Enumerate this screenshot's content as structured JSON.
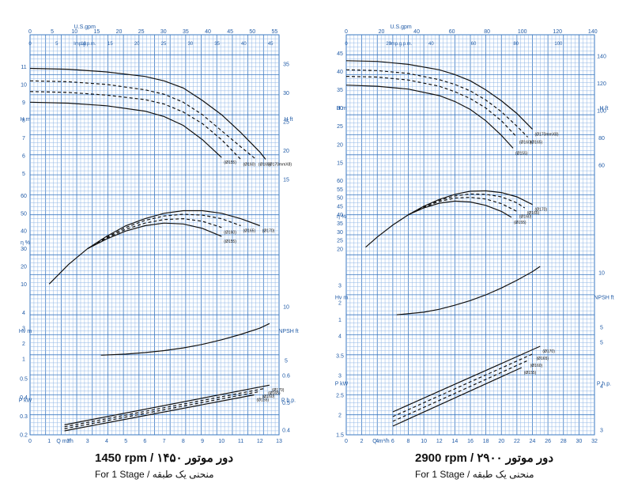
{
  "colors": {
    "grid": "#3a78c2",
    "grid_minor": "#8fb6e6",
    "axis_text": "#1f5aa6",
    "curve": "#111111"
  },
  "captions": {
    "left_rpm": "1450 rpm / ۱۴۵۰ دور موتور",
    "left_stage": "For 1 Stage / منحنی یک طبقه",
    "right_rpm": "2900 rpm / ۲۹۰۰ دور موتور",
    "right_stage": "For 1 Stage / منحنی یک طبقه"
  },
  "chart_data": [
    {
      "type": "line",
      "speed": "1450 rpm",
      "top_axis_1": {
        "label": "U.S.gpm",
        "range": [
          0,
          56
        ],
        "ticks": [
          0,
          5,
          10,
          15,
          20,
          25,
          30,
          35,
          40,
          45,
          50,
          55
        ]
      },
      "top_axis_2": {
        "label": "Imp.g.p.m.",
        "range": [
          0,
          46.6
        ],
        "ticks": [
          0,
          5,
          10,
          15,
          20,
          25,
          30,
          35,
          40,
          45
        ]
      },
      "x_axis": {
        "label": "Q m³/h",
        "range": [
          0,
          13
        ],
        "ticks": [
          0,
          1,
          2,
          3,
          4,
          5,
          6,
          7,
          8,
          9,
          10,
          11,
          12,
          13
        ]
      },
      "panels": [
        {
          "id": "head",
          "ylabel": "H m",
          "ylim": [
            4.4,
            11.5
          ],
          "yticks": [
            5,
            6,
            7,
            8,
            9,
            10,
            11
          ],
          "right": {
            "label": "H ft",
            "ticks": [
              15,
              20,
              25,
              30,
              35
            ]
          },
          "series": [
            {
              "name": "(Ø170mmX8)",
              "dashed": false,
              "x": [
                0,
                2,
                4,
                6,
                7,
                8,
                9,
                10,
                11,
                12,
                12.3
              ],
              "y": [
                10.9,
                10.85,
                10.7,
                10.45,
                10.2,
                9.8,
                9.1,
                8.3,
                7.3,
                6.2,
                5.8
              ]
            },
            {
              "name": "(Ø165)",
              "dashed": true,
              "x": [
                0,
                2,
                4,
                6,
                7,
                8,
                9,
                10,
                11,
                11.8
              ],
              "y": [
                10.2,
                10.15,
                10.0,
                9.7,
                9.45,
                9.0,
                8.3,
                7.4,
                6.5,
                5.8
              ]
            },
            {
              "name": "(Ø160)",
              "dashed": true,
              "x": [
                0,
                2,
                4,
                6,
                7,
                8,
                9,
                10,
                11
              ],
              "y": [
                9.6,
                9.55,
                9.4,
                9.15,
                8.9,
                8.45,
                7.8,
                6.9,
                5.8
              ]
            },
            {
              "name": "(Ø155)",
              "dashed": false,
              "x": [
                0,
                2,
                4,
                6,
                7,
                8,
                9,
                10
              ],
              "y": [
                9.0,
                8.95,
                8.8,
                8.5,
                8.2,
                7.7,
                6.9,
                5.9
              ]
            }
          ]
        },
        {
          "id": "efficiency",
          "ylabel": "η %",
          "ylim": [
            3,
            62
          ],
          "yticks": [
            10,
            20,
            30,
            40,
            50,
            60
          ],
          "series": [
            {
              "name": "(Ø170)",
              "dashed": false,
              "x": [
                1,
                2,
                3,
                4,
                5,
                6,
                7,
                8,
                9,
                10,
                11,
                12
              ],
              "y": [
                10,
                21,
                30,
                37,
                43,
                47,
                50,
                51.5,
                51.5,
                50,
                47,
                43
              ]
            },
            {
              "name": "(Ø165)",
              "dashed": true,
              "x": [
                3,
                4,
                5,
                6,
                7,
                8,
                9,
                10,
                11
              ],
              "y": [
                30,
                36.5,
                42,
                46,
                48.5,
                49.5,
                49,
                47,
                43
              ]
            },
            {
              "name": "(Ø160)",
              "dashed": true,
              "x": [
                3,
                4,
                5,
                6,
                7,
                8,
                9,
                10
              ],
              "y": [
                30,
                36,
                41,
                44.5,
                46.5,
                47,
                45.5,
                42
              ]
            },
            {
              "name": "(Ø155)",
              "dashed": false,
              "x": [
                3,
                4,
                5,
                6,
                7,
                8,
                9,
                10
              ],
              "y": [
                30,
                35.5,
                40,
                43,
                44.5,
                44,
                41.5,
                37
              ]
            }
          ]
        },
        {
          "id": "npsh",
          "ylabel": "Hv m",
          "ylim": [
            0.6,
            4.8
          ],
          "yticks": [
            1,
            2,
            3,
            4
          ],
          "right": {
            "label": "NPSH ft",
            "ticks": [
              5,
              10
            ]
          },
          "series": [
            {
              "name": "NPSH",
              "dashed": false,
              "x": [
                3.7,
                5,
                6,
                7,
                8,
                9,
                10,
                11,
                12,
                12.5
              ],
              "y": [
                1.25,
                1.32,
                1.42,
                1.55,
                1.72,
                1.95,
                2.25,
                2.6,
                3.0,
                3.3
              ]
            }
          ]
        },
        {
          "id": "power",
          "ylabel": "P kW",
          "ylim": [
            0.2,
            0.55
          ],
          "yticks": [
            0.2,
            0.3,
            0.4,
            0.5
          ],
          "right": {
            "label": "P h.p.",
            "ticks": [
              0.4,
              0.5,
              0.6
            ]
          },
          "series": [
            {
              "name": "(Ø170)",
              "dashed": false,
              "x": [
                1.8,
                12.5
              ],
              "y": [
                0.253,
                0.465
              ]
            },
            {
              "name": "(Ø165)",
              "dashed": true,
              "x": [
                1.8,
                12.3
              ],
              "y": [
                0.243,
                0.448
              ]
            },
            {
              "name": "(Ø160)",
              "dashed": true,
              "x": [
                1.8,
                12.0
              ],
              "y": [
                0.232,
                0.431
              ]
            },
            {
              "name": "(Ø155)",
              "dashed": false,
              "x": [
                1.8,
                11.7
              ],
              "y": [
                0.221,
                0.413
              ]
            }
          ]
        }
      ],
      "tick_labels": {
        "lm": [
          "1"
        ],
        "tm": [
          "1",
          "2"
        ]
      }
    },
    {
      "type": "line",
      "speed": "2900 rpm",
      "top_axis_1": {
        "label": "U.S.gpm",
        "range": [
          0,
          141
        ],
        "ticks": [
          0,
          20,
          40,
          60,
          80,
          100,
          120,
          140
        ]
      },
      "top_axis_2": {
        "label": "Imp.g.p.m.",
        "range": [
          0,
          117
        ],
        "ticks": [
          0,
          20,
          40,
          60,
          80,
          100
        ]
      },
      "x_axis": {
        "label": "Q m³/h",
        "range": [
          0,
          32
        ],
        "ticks": [
          0,
          2,
          4,
          6,
          8,
          10,
          12,
          14,
          16,
          18,
          20,
          22,
          24,
          26,
          28,
          30,
          32
        ]
      },
      "panels": [
        {
          "id": "head",
          "ylabel": "H m",
          "ylim": [
            13,
            46
          ],
          "yticks": [
            15,
            20,
            25,
            30,
            35,
            40,
            45
          ],
          "right": {
            "label": "H ft",
            "ticks": [
              60,
              80,
              100,
              120,
              140
            ]
          },
          "series": [
            {
              "name": "(Ø170mmX8)",
              "dashed": false,
              "x": [
                0,
                4,
                8,
                12,
                14,
                16,
                18,
                20,
                22,
                24
              ],
              "y": [
                43.0,
                42.8,
                42.0,
                40.5,
                39.2,
                37.5,
                35.0,
                32.0,
                28.5,
                24.2
              ]
            },
            {
              "name": "(Ø165)",
              "dashed": true,
              "x": [
                0,
                4,
                8,
                12,
                14,
                16,
                18,
                20,
                22,
                23.4
              ],
              "y": [
                40.5,
                40.3,
                39.5,
                37.8,
                36.5,
                34.7,
                32.2,
                29.0,
                25.0,
                22.0
              ]
            },
            {
              "name": "(Ø160)",
              "dashed": true,
              "x": [
                0,
                4,
                8,
                12,
                14,
                16,
                18,
                20,
                22
              ],
              "y": [
                38.7,
                38.5,
                37.7,
                36.0,
                34.5,
                32.6,
                30.0,
                26.5,
                22.0
              ]
            },
            {
              "name": "(Ø155)",
              "dashed": false,
              "x": [
                0,
                4,
                8,
                12,
                14,
                16,
                18,
                20,
                21.5
              ],
              "y": [
                36.3,
                36.0,
                35.2,
                33.4,
                31.8,
                29.6,
                26.5,
                22.5,
                19.0
              ]
            }
          ]
        },
        {
          "id": "efficiency",
          "ylabel": "η %",
          "ylim": [
            13,
            63
          ],
          "yticks": [
            20,
            25,
            30,
            35,
            40,
            45,
            50,
            55,
            60
          ],
          "series": [
            {
              "name": "(Ø170)",
              "dashed": false,
              "x": [
                2.5,
                4,
                6,
                8,
                10,
                12,
                14,
                16,
                18,
                20,
                22,
                24
              ],
              "y": [
                21,
                27,
                34,
                40,
                45,
                49,
                52,
                53.8,
                54,
                53,
                50.5,
                46
              ]
            },
            {
              "name": "(Ø165)",
              "dashed": true,
              "x": [
                8,
                10,
                12,
                14,
                16,
                18,
                20,
                22,
                23
              ],
              "y": [
                40,
                45,
                48.5,
                51,
                52.2,
                52,
                50.5,
                47,
                44
              ]
            },
            {
              "name": "(Ø160)",
              "dashed": true,
              "x": [
                8,
                10,
                12,
                14,
                16,
                18,
                20,
                22
              ],
              "y": [
                40,
                44.5,
                47.8,
                49.8,
                50.2,
                49.2,
                46.5,
                42
              ]
            },
            {
              "name": "(Ø155)",
              "dashed": false,
              "x": [
                8,
                10,
                12,
                14,
                16,
                18,
                20,
                21.3
              ],
              "y": [
                40,
                44,
                46.8,
                48,
                47.5,
                45.5,
                42,
                38.5
              ]
            }
          ]
        },
        {
          "id": "npsh",
          "ylabel": "Hv m",
          "ylim": [
            0.3,
            4.1
          ],
          "yticks": [
            1,
            2,
            3
          ],
          "right": {
            "label": "NPSH ft",
            "ticks": [
              5,
              10
            ]
          },
          "series": [
            {
              "name": "NPSH",
              "dashed": false,
              "x": [
                6.5,
                10,
                12,
                14,
                16,
                18,
                20,
                22,
                24,
                25
              ],
              "y": [
                1.3,
                1.45,
                1.62,
                1.85,
                2.12,
                2.45,
                2.85,
                3.3,
                3.8,
                4.1
              ]
            }
          ]
        },
        {
          "id": "power",
          "ylabel": "P kW",
          "ylim": [
            1.5,
            4.0
          ],
          "yticks": [
            1.5,
            2.0,
            2.5,
            3.0,
            3.5,
            4.0
          ],
          "right": {
            "label": "P h.p.",
            "ticks": [
              3,
              4,
              5
            ]
          },
          "series": [
            {
              "name": "(Ø170)",
              "dashed": false,
              "x": [
                6,
                25
              ],
              "y": [
                2.08,
                3.74
              ]
            },
            {
              "name": "(Ø165)",
              "dashed": true,
              "x": [
                6,
                24.2
              ],
              "y": [
                1.96,
                3.56
              ]
            },
            {
              "name": "(Ø160)",
              "dashed": true,
              "x": [
                6,
                23.4
              ],
              "y": [
                1.84,
                3.38
              ]
            },
            {
              "name": "(Ø155)",
              "dashed": false,
              "x": [
                6,
                22.6
              ],
              "y": [
                1.72,
                3.2
              ]
            }
          ]
        }
      ]
    }
  ]
}
